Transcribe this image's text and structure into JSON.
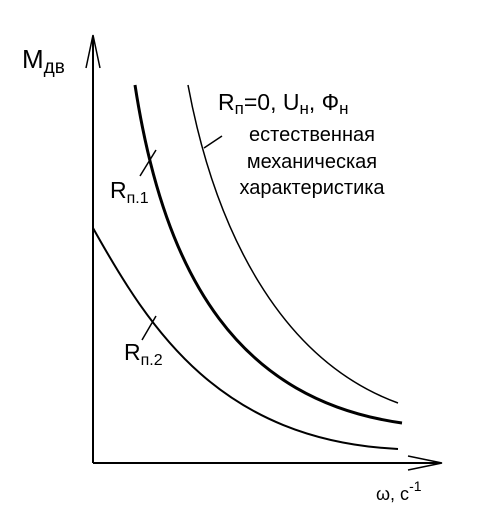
{
  "y_axis": {
    "label": "M",
    "subscript": "дв"
  },
  "x_axis": {
    "label": "ω, с",
    "superscript": "-1"
  },
  "curves": [
    {
      "label_parts": [
        "R",
        "п",
        "=0, U",
        "н",
        ", Ф",
        "н"
      ],
      "caption": [
        "естественная",
        "механическая",
        "характеристика"
      ]
    },
    {
      "label": "R",
      "subscript": "п.1"
    },
    {
      "label": "R",
      "subscript": "п.2"
    }
  ]
}
